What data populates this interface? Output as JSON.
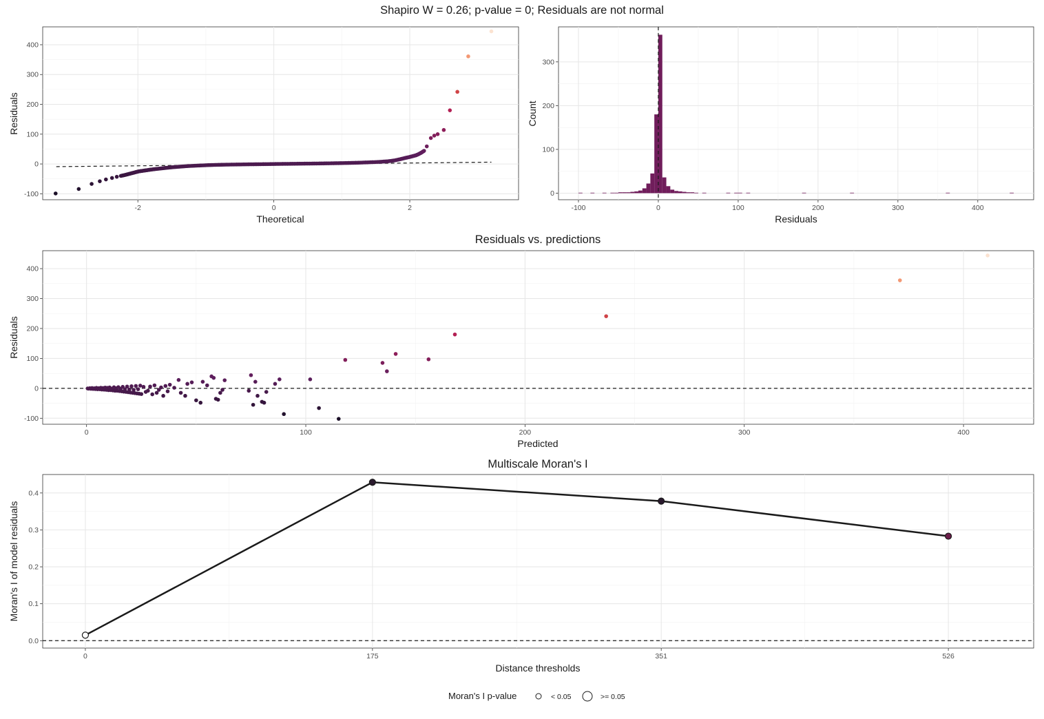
{
  "suptitle": "Shapiro W = 0.26; p-value = 0; Residuals are not normal",
  "chart_data": [
    {
      "id": "qq",
      "type": "scatter",
      "title": "",
      "xlabel": "Theoretical",
      "ylabel": "Residuals",
      "xlim": [
        -3.4,
        3.6
      ],
      "ylim": [
        -120,
        460
      ],
      "xticks": [
        -2,
        0,
        2
      ],
      "xtick_labels": [
        "-2",
        "0",
        "2"
      ],
      "yticks": [
        -100,
        0,
        100,
        200,
        300,
        400
      ],
      "ytick_labels": [
        "-100",
        "0",
        "100",
        "200",
        "300",
        "400"
      ],
      "grid": true,
      "reference_line": {
        "x": [
          -3.2,
          3.2
        ],
        "y": [
          -9,
          6
        ],
        "style": "dashed"
      },
      "points": [
        [
          -3.21,
          -99
        ],
        [
          -2.87,
          -84
        ],
        [
          -2.68,
          -67
        ],
        [
          -2.56,
          -58
        ],
        [
          -2.47,
          -52
        ],
        [
          -2.38,
          -47
        ],
        [
          -2.31,
          -43
        ],
        [
          -2.25,
          -40
        ],
        [
          -2.19,
          -37
        ],
        [
          -2.14,
          -34
        ],
        [
          -2.09,
          -31
        ],
        [
          -2.04,
          -28
        ],
        [
          -1.99,
          -25
        ],
        [
          -1.93,
          -23
        ],
        [
          -1.87,
          -21
        ],
        [
          -1.81,
          -19
        ],
        [
          -1.74,
          -17
        ],
        [
          -1.66,
          -15
        ],
        [
          -1.58,
          -13
        ],
        [
          -1.49,
          -11
        ],
        [
          -1.38,
          -9
        ],
        [
          -1.26,
          -7
        ],
        [
          -1.12,
          -5.5
        ],
        [
          -0.98,
          -4
        ],
        [
          -0.84,
          -3
        ],
        [
          -0.7,
          -2.3
        ],
        [
          -0.55,
          -1.8
        ],
        [
          -0.4,
          -1.3
        ],
        [
          -0.25,
          -0.9
        ],
        [
          -0.1,
          -0.5
        ],
        [
          0.05,
          0
        ],
        [
          0.2,
          0.4
        ],
        [
          0.35,
          0.8
        ],
        [
          0.5,
          1.2
        ],
        [
          0.65,
          1.6
        ],
        [
          0.8,
          2.1
        ],
        [
          0.95,
          2.7
        ],
        [
          1.1,
          3.4
        ],
        [
          1.25,
          4.3
        ],
        [
          1.4,
          5.5
        ],
        [
          1.55,
          7
        ],
        [
          1.68,
          9
        ],
        [
          1.78,
          12
        ],
        [
          1.86,
          16
        ],
        [
          1.93,
          20
        ],
        [
          1.99,
          23
        ],
        [
          2.04,
          26
        ],
        [
          2.09,
          29
        ],
        [
          2.13,
          33
        ],
        [
          2.17,
          38
        ],
        [
          2.21,
          44
        ],
        [
          2.25,
          59
        ],
        [
          2.31,
          87
        ],
        [
          2.36,
          95
        ],
        [
          2.41,
          100
        ],
        [
          2.5,
          114
        ],
        [
          2.59,
          180
        ],
        [
          2.7,
          242
        ],
        [
          2.86,
          361
        ],
        [
          3.2,
          445
        ]
      ],
      "color_scale": {
        "low": "#1c1028",
        "mid1": "#5e1f5e",
        "mid2": "#b01c55",
        "mid3": "#ee6a3a",
        "high": "#fbe3d1"
      }
    },
    {
      "id": "hist",
      "type": "bar",
      "title": "",
      "xlabel": "Residuals",
      "ylabel": "Count",
      "xlim": [
        -125,
        470
      ],
      "ylim": [
        -15,
        380
      ],
      "xticks": [
        -100,
        0,
        100,
        200,
        300,
        400
      ],
      "xtick_labels": [
        "-100",
        "0",
        "100",
        "200",
        "300",
        "400"
      ],
      "yticks": [
        0,
        100,
        200,
        300
      ],
      "ytick_labels": [
        "0",
        "100",
        "200",
        "300"
      ],
      "grid": true,
      "bin_width": 5,
      "bins": [
        [
          -100,
          1
        ],
        [
          -85,
          1
        ],
        [
          -70,
          1
        ],
        [
          -60,
          1
        ],
        [
          -55,
          1
        ],
        [
          -50,
          2
        ],
        [
          -45,
          2
        ],
        [
          -40,
          2
        ],
        [
          -35,
          3
        ],
        [
          -30,
          4
        ],
        [
          -25,
          6
        ],
        [
          -20,
          11
        ],
        [
          -15,
          22
        ],
        [
          -10,
          45
        ],
        [
          -5,
          180
        ],
        [
          0,
          362
        ],
        [
          5,
          36
        ],
        [
          10,
          16
        ],
        [
          15,
          8
        ],
        [
          20,
          5
        ],
        [
          25,
          4
        ],
        [
          30,
          3
        ],
        [
          35,
          2
        ],
        [
          40,
          2
        ],
        [
          45,
          1
        ],
        [
          55,
          1
        ],
        [
          85,
          1
        ],
        [
          95,
          1
        ],
        [
          100,
          1
        ],
        [
          110,
          1
        ],
        [
          180,
          1
        ],
        [
          240,
          1
        ],
        [
          360,
          1
        ],
        [
          440,
          1
        ]
      ],
      "vline": 0
    },
    {
      "id": "resid_pred",
      "type": "scatter",
      "title": "Residuals vs. predictions",
      "xlabel": "Predicted",
      "ylabel": "Residuals",
      "xlim": [
        -20,
        432
      ],
      "ylim": [
        -120,
        460
      ],
      "xticks": [
        0,
        100,
        200,
        300,
        400
      ],
      "xtick_labels": [
        "0",
        "100",
        "200",
        "300",
        "400"
      ],
      "yticks": [
        -100,
        0,
        100,
        200,
        300,
        400
      ],
      "ytick_labels": [
        "-100",
        "0",
        "100",
        "200",
        "300",
        "400"
      ],
      "grid": true,
      "hline": 0,
      "points": [
        [
          0.5,
          -0.5
        ],
        [
          1,
          -1
        ],
        [
          1.5,
          0.5
        ],
        [
          2,
          -1.5
        ],
        [
          2.5,
          1
        ],
        [
          3,
          -2
        ],
        [
          3.5,
          0
        ],
        [
          4,
          -2.5
        ],
        [
          4.5,
          1.5
        ],
        [
          5,
          -3
        ],
        [
          5.5,
          0.5
        ],
        [
          6,
          -3
        ],
        [
          6.5,
          2
        ],
        [
          7,
          -4
        ],
        [
          7.5,
          1
        ],
        [
          8,
          -4.5
        ],
        [
          8.5,
          2.5
        ],
        [
          9,
          -5
        ],
        [
          9.5,
          1.5
        ],
        [
          10,
          -6
        ],
        [
          10.5,
          3
        ],
        [
          11,
          -6
        ],
        [
          11.5,
          -1
        ],
        [
          12,
          -7
        ],
        [
          12.5,
          3.5
        ],
        [
          13,
          -8
        ],
        [
          13.5,
          0
        ],
        [
          14,
          -8
        ],
        [
          14.5,
          4
        ],
        [
          15,
          -9
        ],
        [
          15.5,
          -2
        ],
        [
          16,
          -10
        ],
        [
          16.5,
          5
        ],
        [
          17,
          -11
        ],
        [
          17.5,
          -3
        ],
        [
          18,
          -12
        ],
        [
          18.5,
          6
        ],
        [
          19,
          -13
        ],
        [
          19.5,
          -4
        ],
        [
          20,
          -14
        ],
        [
          20.5,
          7
        ],
        [
          21,
          -15
        ],
        [
          21.5,
          -5
        ],
        [
          22,
          -16
        ],
        [
          22.5,
          8
        ],
        [
          23,
          -17
        ],
        [
          23.5,
          -3
        ],
        [
          24,
          -18
        ],
        [
          24.5,
          9
        ],
        [
          25,
          -19
        ],
        [
          26,
          5
        ],
        [
          27,
          -12
        ],
        [
          28,
          -8
        ],
        [
          29,
          6
        ],
        [
          30,
          -20
        ],
        [
          31,
          10
        ],
        [
          32,
          -15
        ],
        [
          33,
          -5
        ],
        [
          34,
          3
        ],
        [
          35,
          -25
        ],
        [
          36,
          8
        ],
        [
          37,
          -10
        ],
        [
          38,
          12
        ],
        [
          40,
          2
        ],
        [
          42,
          28
        ],
        [
          43,
          -15
        ],
        [
          45,
          -25
        ],
        [
          46,
          15
        ],
        [
          48,
          20
        ],
        [
          50,
          -40
        ],
        [
          52,
          -48
        ],
        [
          53,
          22
        ],
        [
          55,
          10
        ],
        [
          57,
          40
        ],
        [
          58,
          35
        ],
        [
          59,
          -35
        ],
        [
          60,
          -38
        ],
        [
          61,
          -15
        ],
        [
          62,
          -5
        ],
        [
          63,
          27
        ],
        [
          74,
          -8
        ],
        [
          75,
          44
        ],
        [
          76,
          -55
        ],
        [
          77,
          22
        ],
        [
          78,
          -25
        ],
        [
          80,
          -45
        ],
        [
          81,
          -48
        ],
        [
          82,
          -12
        ],
        [
          86,
          15
        ],
        [
          88,
          30
        ],
        [
          90,
          -86
        ],
        [
          102,
          30
        ],
        [
          106,
          -66
        ],
        [
          115,
          -102
        ],
        [
          118,
          95
        ],
        [
          135,
          85
        ],
        [
          137,
          57
        ],
        [
          141,
          115
        ],
        [
          156,
          97
        ],
        [
          168,
          180
        ],
        [
          237,
          241
        ],
        [
          371,
          361
        ],
        [
          411,
          444
        ]
      ],
      "color_scale": {
        "low": "#1c1028",
        "mid1": "#5e1f5e",
        "mid2": "#b01c55",
        "mid3": "#ee6a3a",
        "high": "#fbe3d1"
      }
    },
    {
      "id": "moran",
      "type": "line",
      "title": "Multiscale Moran's I",
      "xlabel": "Distance thresholds",
      "ylabel": "Moran's I of model residuals",
      "xlim": [
        -26,
        578
      ],
      "ylim": [
        -0.02,
        0.45
      ],
      "xticks": [
        0,
        175,
        351,
        526
      ],
      "xtick_labels": [
        "0",
        "175",
        "351",
        "526"
      ],
      "yticks": [
        0,
        0.1,
        0.2,
        0.3,
        0.4
      ],
      "ytick_labels": [
        "0.0",
        "0.1",
        "0.2",
        "0.3",
        "0.4"
      ],
      "grid": true,
      "hline": 0,
      "x": [
        0,
        175,
        351,
        526
      ],
      "y": [
        0.015,
        0.429,
        0.378,
        0.283
      ],
      "p_value_group": [
        ">= 0.05",
        "< 0.05",
        "< 0.05",
        "< 0.05"
      ],
      "legend": {
        "title": "Moran's I p-value",
        "items": [
          "< 0.05",
          ">= 0.05"
        ],
        "placement": "bottom"
      }
    }
  ]
}
